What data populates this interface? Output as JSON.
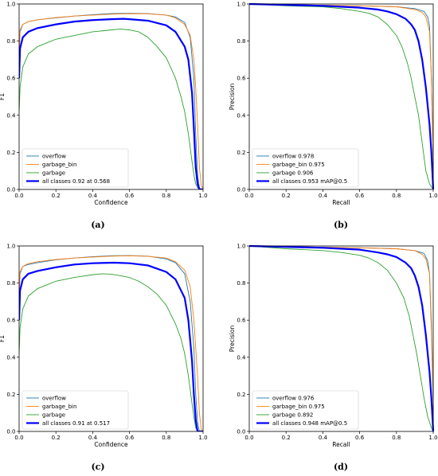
{
  "colors": {
    "overflow": "#1f77b4",
    "garbage_bin": "#ff7f0e",
    "garbage": "#2ca02c",
    "all_classes": "#0000ff"
  },
  "chart_data": [
    {
      "panel": "a",
      "caption": "(a)",
      "type": "line",
      "xlabel": "Confidence",
      "ylabel": "F1",
      "xlim": [
        0,
        1
      ],
      "ylim": [
        0,
        1
      ],
      "xticks": [
        "0.0",
        "0.2",
        "0.4",
        "0.6",
        "0.8",
        "1.0"
      ],
      "yticks": [
        "0.0",
        "0.2",
        "0.4",
        "0.6",
        "0.8",
        "1.0"
      ],
      "grid": false,
      "legend_position": "lower-left",
      "series": [
        {
          "name": "overflow",
          "color_key": "overflow",
          "width": 0.9,
          "x": [
            0,
            0.005,
            0.02,
            0.05,
            0.1,
            0.2,
            0.3,
            0.4,
            0.5,
            0.6,
            0.7,
            0.8,
            0.85,
            0.9,
            0.93,
            0.95,
            0.96,
            0.97,
            0.98,
            0.99,
            1.0
          ],
          "y": [
            0.7,
            0.85,
            0.89,
            0.905,
            0.915,
            0.925,
            0.935,
            0.942,
            0.948,
            0.95,
            0.948,
            0.94,
            0.93,
            0.9,
            0.82,
            0.6,
            0.3,
            0.08,
            0.01,
            0.0,
            0.0
          ]
        },
        {
          "name": "garbage_bin",
          "color_key": "garbage_bin",
          "width": 0.9,
          "x": [
            0,
            0.005,
            0.02,
            0.05,
            0.1,
            0.2,
            0.3,
            0.4,
            0.5,
            0.6,
            0.7,
            0.8,
            0.85,
            0.9,
            0.93,
            0.95,
            0.96,
            0.97,
            0.98,
            0.99,
            1.0
          ],
          "y": [
            0.72,
            0.86,
            0.89,
            0.905,
            0.915,
            0.927,
            0.935,
            0.94,
            0.945,
            0.948,
            0.947,
            0.94,
            0.925,
            0.89,
            0.83,
            0.7,
            0.55,
            0.35,
            0.12,
            0.02,
            0.0
          ]
        },
        {
          "name": "garbage",
          "color_key": "garbage",
          "width": 0.9,
          "x": [
            0,
            0.005,
            0.02,
            0.05,
            0.1,
            0.15,
            0.2,
            0.3,
            0.4,
            0.5,
            0.55,
            0.6,
            0.65,
            0.7,
            0.75,
            0.8,
            0.85,
            0.88,
            0.9,
            0.92,
            0.94,
            0.95,
            0.96,
            0.97,
            0.98,
            1.0
          ],
          "y": [
            0.42,
            0.55,
            0.66,
            0.73,
            0.77,
            0.79,
            0.81,
            0.83,
            0.85,
            0.86,
            0.865,
            0.86,
            0.85,
            0.82,
            0.77,
            0.71,
            0.6,
            0.5,
            0.42,
            0.3,
            0.15,
            0.08,
            0.03,
            0.01,
            0.0,
            0.0
          ]
        },
        {
          "name": "all classes 0.92 at 0.568",
          "color_key": "all_classes",
          "width": 2.2,
          "x": [
            0,
            0.005,
            0.02,
            0.05,
            0.1,
            0.2,
            0.3,
            0.4,
            0.5,
            0.568,
            0.6,
            0.7,
            0.8,
            0.85,
            0.9,
            0.92,
            0.94,
            0.95,
            0.96,
            0.97,
            0.98,
            1.0
          ],
          "y": [
            0.6,
            0.76,
            0.82,
            0.85,
            0.87,
            0.89,
            0.905,
            0.913,
            0.918,
            0.92,
            0.918,
            0.91,
            0.885,
            0.85,
            0.77,
            0.7,
            0.52,
            0.33,
            0.12,
            0.03,
            0.0,
            0.0
          ]
        }
      ]
    },
    {
      "panel": "b",
      "caption": "(b)",
      "type": "line",
      "xlabel": "Recall",
      "ylabel": "Precision",
      "xlim": [
        0,
        1
      ],
      "ylim": [
        0,
        1
      ],
      "xticks": [
        "0.0",
        "0.2",
        "0.4",
        "0.6",
        "0.8",
        "1.0"
      ],
      "yticks": [
        "0.0",
        "0.2",
        "0.4",
        "0.6",
        "0.8",
        "1.0"
      ],
      "grid": false,
      "legend_position": "lower-left",
      "series": [
        {
          "name": "overflow 0.978",
          "color_key": "overflow",
          "width": 0.9,
          "x": [
            0,
            0.3,
            0.6,
            0.8,
            0.9,
            0.95,
            0.97,
            0.98,
            0.99,
            1.0,
            1.0
          ],
          "y": [
            1.0,
            0.995,
            0.99,
            0.985,
            0.975,
            0.96,
            0.93,
            0.88,
            0.6,
            0.15,
            0.0
          ]
        },
        {
          "name": "garbage_bin 0.975",
          "color_key": "garbage_bin",
          "width": 0.9,
          "x": [
            0,
            0.3,
            0.6,
            0.8,
            0.9,
            0.94,
            0.96,
            0.98,
            0.99,
            1.0,
            1.0
          ],
          "y": [
            1.0,
            0.995,
            0.99,
            0.985,
            0.97,
            0.955,
            0.93,
            0.85,
            0.6,
            0.15,
            0.0
          ]
        },
        {
          "name": "garbage 0.906",
          "color_key": "garbage",
          "width": 0.9,
          "x": [
            0,
            0.2,
            0.4,
            0.5,
            0.6,
            0.65,
            0.7,
            0.75,
            0.8,
            0.83,
            0.86,
            0.88,
            0.9,
            0.92,
            0.94,
            0.96,
            0.98,
            1.0
          ],
          "y": [
            1.0,
            0.99,
            0.985,
            0.975,
            0.96,
            0.95,
            0.93,
            0.89,
            0.83,
            0.77,
            0.68,
            0.6,
            0.5,
            0.4,
            0.25,
            0.1,
            0.03,
            0.0
          ]
        },
        {
          "name": "all classes 0.953 mAP@0.5",
          "color_key": "all_classes",
          "width": 2.2,
          "x": [
            0,
            0.2,
            0.4,
            0.6,
            0.7,
            0.75,
            0.8,
            0.85,
            0.88,
            0.9,
            0.92,
            0.94,
            0.96,
            0.98,
            0.99,
            1.0
          ],
          "y": [
            1.0,
            0.995,
            0.99,
            0.98,
            0.97,
            0.96,
            0.945,
            0.92,
            0.89,
            0.86,
            0.8,
            0.7,
            0.55,
            0.35,
            0.2,
            0.0
          ]
        }
      ]
    },
    {
      "panel": "c",
      "caption": "(c)",
      "type": "line",
      "xlabel": "Confidence",
      "ylabel": "F1",
      "xlim": [
        0,
        1
      ],
      "ylim": [
        0,
        1
      ],
      "xticks": [
        "0.0",
        "0.2",
        "0.4",
        "0.6",
        "0.8",
        "1.0"
      ],
      "yticks": [
        "0.0",
        "0.2",
        "0.4",
        "0.6",
        "0.8",
        "1.0"
      ],
      "grid": false,
      "legend_position": "lower-left",
      "series": [
        {
          "name": "overflow",
          "color_key": "overflow",
          "width": 0.9,
          "x": [
            0,
            0.005,
            0.02,
            0.05,
            0.1,
            0.2,
            0.3,
            0.4,
            0.5,
            0.6,
            0.7,
            0.8,
            0.85,
            0.9,
            0.93,
            0.95,
            0.96,
            0.97,
            0.98,
            1.0
          ],
          "y": [
            0.72,
            0.85,
            0.89,
            0.9,
            0.91,
            0.925,
            0.935,
            0.942,
            0.947,
            0.948,
            0.945,
            0.93,
            0.91,
            0.85,
            0.7,
            0.45,
            0.2,
            0.05,
            0.0,
            0.0
          ]
        },
        {
          "name": "garbage_bin",
          "color_key": "garbage_bin",
          "width": 0.9,
          "x": [
            0,
            0.005,
            0.02,
            0.05,
            0.1,
            0.2,
            0.3,
            0.4,
            0.5,
            0.6,
            0.7,
            0.8,
            0.85,
            0.9,
            0.93,
            0.95,
            0.97,
            0.98,
            0.99,
            1.0
          ],
          "y": [
            0.74,
            0.86,
            0.89,
            0.905,
            0.915,
            0.927,
            0.935,
            0.94,
            0.945,
            0.947,
            0.944,
            0.935,
            0.915,
            0.87,
            0.78,
            0.6,
            0.3,
            0.1,
            0.01,
            0.0
          ]
        },
        {
          "name": "garbage",
          "color_key": "garbage",
          "width": 0.9,
          "x": [
            0,
            0.005,
            0.02,
            0.05,
            0.1,
            0.15,
            0.2,
            0.3,
            0.4,
            0.45,
            0.5,
            0.55,
            0.6,
            0.65,
            0.7,
            0.75,
            0.8,
            0.85,
            0.88,
            0.9,
            0.92,
            0.94,
            0.95,
            0.96,
            0.97,
            1.0
          ],
          "y": [
            0.42,
            0.56,
            0.66,
            0.73,
            0.77,
            0.79,
            0.81,
            0.83,
            0.845,
            0.85,
            0.848,
            0.84,
            0.83,
            0.81,
            0.78,
            0.74,
            0.68,
            0.58,
            0.5,
            0.42,
            0.3,
            0.15,
            0.08,
            0.02,
            0.0,
            0.0
          ]
        },
        {
          "name": "all classes 0.91 at 0.517",
          "color_key": "all_classes",
          "width": 2.2,
          "x": [
            0,
            0.005,
            0.02,
            0.05,
            0.1,
            0.2,
            0.3,
            0.4,
            0.517,
            0.6,
            0.7,
            0.8,
            0.85,
            0.9,
            0.92,
            0.94,
            0.95,
            0.96,
            0.97,
            1.0
          ],
          "y": [
            0.6,
            0.76,
            0.82,
            0.85,
            0.865,
            0.885,
            0.9,
            0.907,
            0.91,
            0.907,
            0.895,
            0.86,
            0.82,
            0.72,
            0.6,
            0.38,
            0.2,
            0.06,
            0.0,
            0.0
          ]
        }
      ]
    },
    {
      "panel": "d",
      "caption": "(d)",
      "type": "line",
      "xlabel": "Recall",
      "ylabel": "Precision",
      "xlim": [
        0,
        1
      ],
      "ylim": [
        0,
        1
      ],
      "xticks": [
        "0.0",
        "0.2",
        "0.4",
        "0.6",
        "0.8",
        "1.0"
      ],
      "yticks": [
        "0.0",
        "0.2",
        "0.4",
        "0.6",
        "0.8",
        "1.0"
      ],
      "grid": false,
      "legend_position": "lower-left",
      "series": [
        {
          "name": "overflow 0.976",
          "color_key": "overflow",
          "width": 0.9,
          "x": [
            0,
            0.3,
            0.6,
            0.8,
            0.9,
            0.95,
            0.97,
            0.98,
            0.99,
            1.0,
            1.0
          ],
          "y": [
            1.0,
            0.995,
            0.99,
            0.985,
            0.975,
            0.96,
            0.92,
            0.85,
            0.55,
            0.15,
            0.0
          ]
        },
        {
          "name": "garbage_bin 0.975",
          "color_key": "garbage_bin",
          "width": 0.9,
          "x": [
            0,
            0.3,
            0.6,
            0.8,
            0.9,
            0.94,
            0.96,
            0.98,
            0.99,
            1.0,
            1.0
          ],
          "y": [
            1.0,
            0.995,
            0.99,
            0.985,
            0.975,
            0.955,
            0.93,
            0.85,
            0.6,
            0.2,
            0.0
          ]
        },
        {
          "name": "garbage 0.892",
          "color_key": "garbage",
          "width": 0.9,
          "x": [
            0,
            0.2,
            0.4,
            0.5,
            0.6,
            0.65,
            0.7,
            0.75,
            0.8,
            0.84,
            0.87,
            0.89,
            0.91,
            0.93,
            0.95,
            0.97,
            0.99,
            1.0
          ],
          "y": [
            1.0,
            0.985,
            0.975,
            0.965,
            0.95,
            0.935,
            0.91,
            0.87,
            0.8,
            0.72,
            0.62,
            0.52,
            0.42,
            0.3,
            0.18,
            0.08,
            0.02,
            0.0
          ]
        },
        {
          "name": "all classes 0.948 mAP@0.5",
          "color_key": "all_classes",
          "width": 2.2,
          "x": [
            0,
            0.2,
            0.4,
            0.6,
            0.7,
            0.75,
            0.8,
            0.85,
            0.88,
            0.9,
            0.92,
            0.94,
            0.96,
            0.98,
            0.99,
            1.0
          ],
          "y": [
            1.0,
            0.995,
            0.99,
            0.98,
            0.965,
            0.955,
            0.94,
            0.91,
            0.88,
            0.84,
            0.78,
            0.68,
            0.52,
            0.32,
            0.18,
            0.0
          ]
        }
      ]
    }
  ]
}
